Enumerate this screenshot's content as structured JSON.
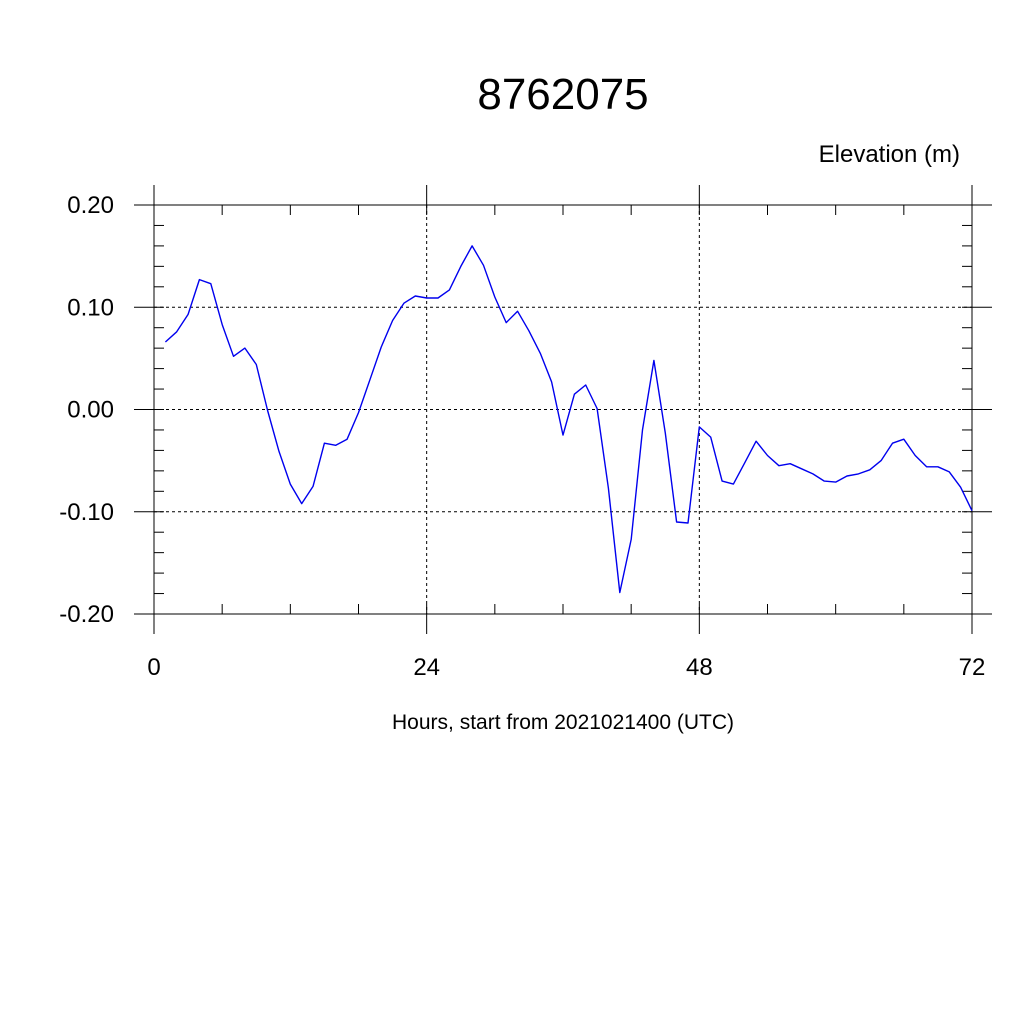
{
  "chart_data": {
    "type": "line",
    "title": "8762075",
    "ylabel": "Elevation (m)",
    "xlabel": "Hours, start from 2021021400 (UTC)",
    "xlim": [
      0,
      72
    ],
    "ylim": [
      -0.2,
      0.2
    ],
    "x_ticks": [
      0,
      24,
      48,
      72
    ],
    "x_tick_labels": [
      "0",
      "24",
      "48",
      "72"
    ],
    "y_ticks": [
      0.2,
      0.1,
      0.0,
      -0.1,
      -0.2
    ],
    "y_tick_labels": [
      "0.20",
      "0.10",
      "0.00",
      "-0.10",
      "-0.20"
    ],
    "grid": "dashed",
    "line_color": "#0000ee",
    "series": [
      {
        "x": [
          1,
          2,
          3,
          4,
          5,
          6,
          7,
          8,
          9,
          10,
          11,
          12,
          13,
          14,
          15,
          16,
          17,
          18,
          19,
          20,
          21,
          22,
          23,
          24,
          25,
          26,
          27,
          28,
          29,
          30,
          31,
          32,
          33,
          34,
          35,
          36,
          37,
          38,
          39,
          40,
          41,
          42,
          43,
          44,
          45,
          46,
          47,
          48,
          49,
          50,
          51,
          52,
          53,
          54,
          55,
          56,
          57,
          58,
          59,
          60,
          61,
          62,
          63,
          64,
          65,
          66,
          67,
          68,
          69,
          70,
          71,
          72
        ],
        "values": [
          0.066,
          0.076,
          0.093,
          0.127,
          0.123,
          0.083,
          0.052,
          0.06,
          0.044,
          -0.001,
          -0.041,
          -0.073,
          -0.092,
          -0.075,
          -0.033,
          -0.035,
          -0.029,
          -0.003,
          0.029,
          0.061,
          0.087,
          0.104,
          0.111,
          0.109,
          0.109,
          0.117,
          0.14,
          0.16,
          0.141,
          0.11,
          0.085,
          0.096,
          0.077,
          0.055,
          0.027,
          -0.025,
          0.015,
          0.024,
          0.001,
          -0.077,
          -0.179,
          -0.127,
          -0.02,
          0.048,
          -0.023,
          -0.11,
          -0.111,
          -0.017,
          -0.027,
          -0.07,
          -0.073,
          -0.052,
          -0.031,
          -0.045,
          -0.055,
          -0.053,
          -0.058,
          -0.063,
          -0.07,
          -0.071,
          -0.065,
          -0.063,
          -0.059,
          -0.05,
          -0.033,
          -0.029,
          -0.045,
          -0.056,
          -0.056,
          -0.061,
          -0.076,
          -0.099
        ]
      }
    ]
  }
}
